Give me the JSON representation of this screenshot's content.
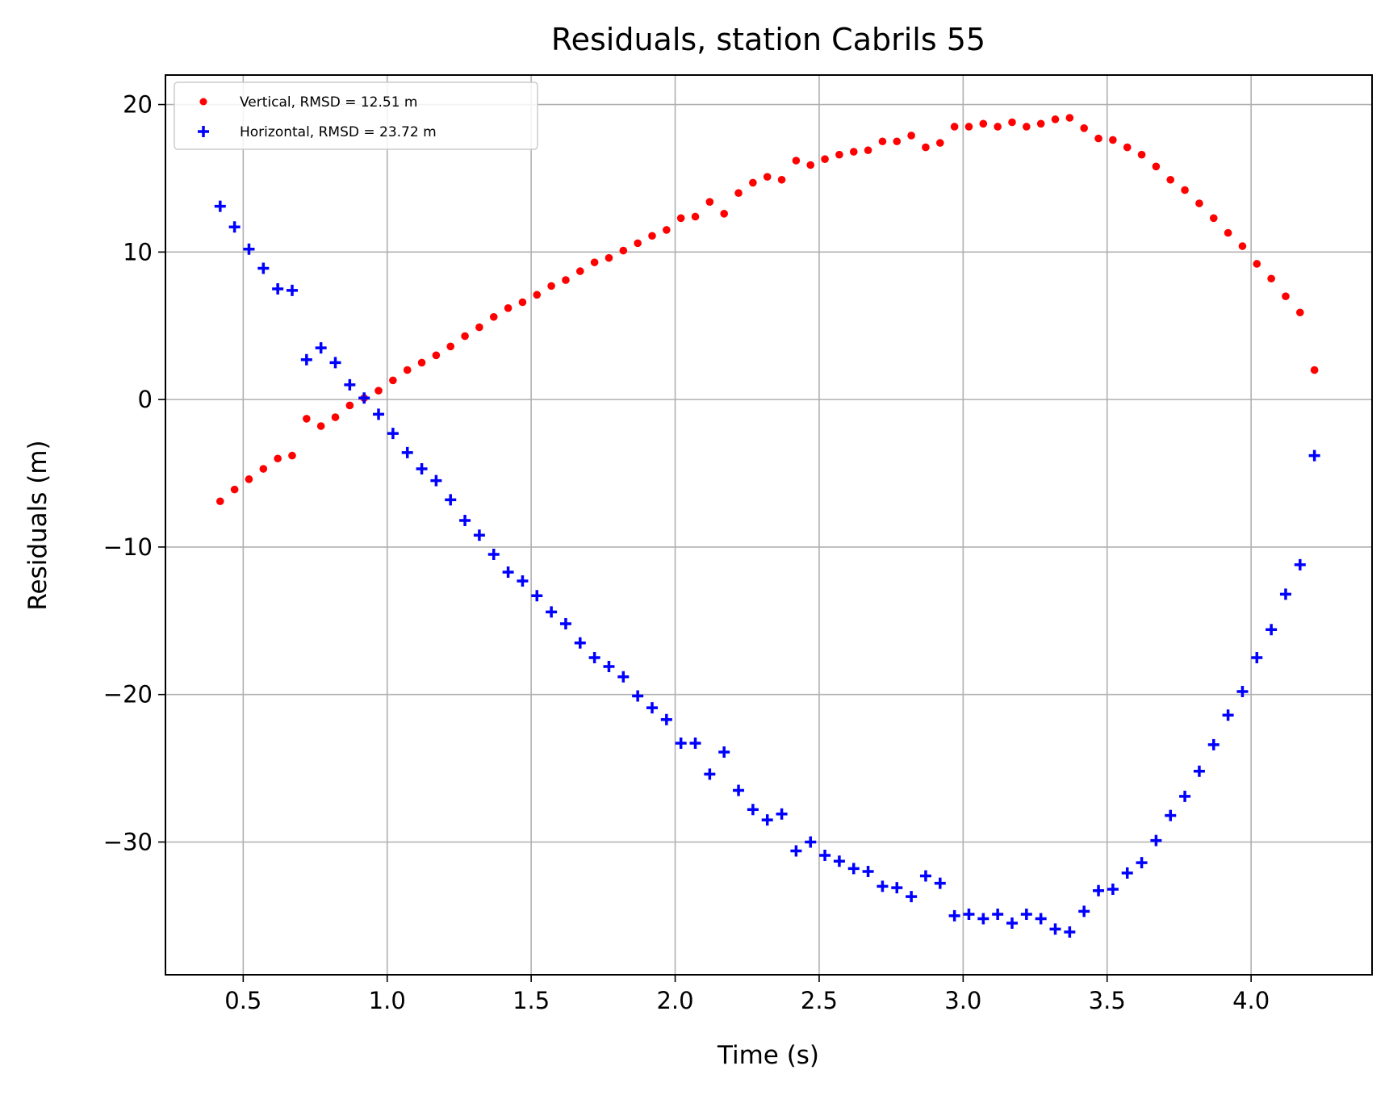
{
  "chart_data": {
    "type": "scatter",
    "title": "Residuals, station Cabrils 55",
    "xlabel": "Time (s)",
    "ylabel": "Residuals (m)",
    "xlim": [
      0.23,
      4.42
    ],
    "ylim": [
      -39.0,
      22.0
    ],
    "grid": true,
    "legend_position": "top-left",
    "x_ticks": [
      {
        "value": 0.5,
        "label": "0.5"
      },
      {
        "value": 1.0,
        "label": "1.0"
      },
      {
        "value": 1.5,
        "label": "1.5"
      },
      {
        "value": 2.0,
        "label": "2.0"
      },
      {
        "value": 2.5,
        "label": "2.5"
      },
      {
        "value": 3.0,
        "label": "3.0"
      },
      {
        "value": 3.5,
        "label": "3.5"
      },
      {
        "value": 4.0,
        "label": "4.0"
      }
    ],
    "y_ticks": [
      {
        "value": 20,
        "label": "20"
      },
      {
        "value": 10,
        "label": "10"
      },
      {
        "value": 0,
        "label": "0"
      },
      {
        "value": -10,
        "label": "−10"
      },
      {
        "value": -20,
        "label": "−20"
      },
      {
        "value": -30,
        "label": "−30"
      }
    ],
    "series": [
      {
        "name": "Vertical, RMSD = 12.51 m",
        "marker": "dot",
        "color": "#ff0000",
        "x": [
          0.42,
          0.47,
          0.52,
          0.57,
          0.62,
          0.67,
          0.72,
          0.77,
          0.82,
          0.87,
          0.92,
          0.97,
          1.02,
          1.07,
          1.12,
          1.17,
          1.22,
          1.27,
          1.32,
          1.37,
          1.42,
          1.47,
          1.52,
          1.57,
          1.62,
          1.67,
          1.72,
          1.77,
          1.82,
          1.87,
          1.92,
          1.97,
          2.02,
          2.07,
          2.12,
          2.17,
          2.22,
          2.27,
          2.32,
          2.37,
          2.42,
          2.47,
          2.52,
          2.57,
          2.62,
          2.67,
          2.72,
          2.77,
          2.82,
          2.87,
          2.92,
          2.97,
          3.02,
          3.07,
          3.12,
          3.17,
          3.22,
          3.27,
          3.32,
          3.37,
          3.42,
          3.47,
          3.52,
          3.57,
          3.62,
          3.67,
          3.72,
          3.77,
          3.82,
          3.87,
          3.92,
          3.97,
          4.02,
          4.07,
          4.12,
          4.17,
          4.22
        ],
        "y": [
          -6.9,
          -6.1,
          -5.4,
          -4.7,
          -4.0,
          -3.8,
          -1.3,
          -1.8,
          -1.2,
          -0.4,
          0.1,
          0.6,
          1.3,
          2.0,
          2.5,
          3.0,
          3.6,
          4.3,
          4.9,
          5.6,
          6.2,
          6.6,
          7.1,
          7.7,
          8.1,
          8.7,
          9.3,
          9.6,
          10.1,
          10.6,
          11.1,
          11.5,
          12.3,
          12.4,
          13.4,
          12.6,
          14.0,
          14.7,
          15.1,
          14.9,
          16.2,
          15.9,
          16.3,
          16.6,
          16.8,
          16.9,
          17.5,
          17.5,
          17.9,
          17.1,
          17.4,
          18.5,
          18.5,
          18.7,
          18.5,
          18.8,
          18.5,
          18.7,
          19.0,
          19.1,
          18.4,
          17.7,
          17.6,
          17.1,
          16.6,
          15.8,
          14.9,
          14.2,
          13.3,
          12.3,
          11.3,
          10.4,
          9.2,
          8.2,
          7.0,
          5.9,
          2.0
        ]
      },
      {
        "name": "Horizontal, RMSD = 23.72 m",
        "marker": "plus",
        "color": "#0000ff",
        "x": [
          0.42,
          0.47,
          0.52,
          0.57,
          0.62,
          0.67,
          0.72,
          0.77,
          0.82,
          0.87,
          0.92,
          0.97,
          1.02,
          1.07,
          1.12,
          1.17,
          1.22,
          1.27,
          1.32,
          1.37,
          1.42,
          1.47,
          1.52,
          1.57,
          1.62,
          1.67,
          1.72,
          1.77,
          1.82,
          1.87,
          1.92,
          1.97,
          2.02,
          2.07,
          2.12,
          2.17,
          2.22,
          2.27,
          2.32,
          2.37,
          2.42,
          2.47,
          2.52,
          2.57,
          2.62,
          2.67,
          2.72,
          2.77,
          2.82,
          2.87,
          2.92,
          2.97,
          3.02,
          3.07,
          3.12,
          3.17,
          3.22,
          3.27,
          3.32,
          3.37,
          3.42,
          3.47,
          3.52,
          3.57,
          3.62,
          3.67,
          3.72,
          3.77,
          3.82,
          3.87,
          3.92,
          3.97,
          4.02,
          4.07,
          4.12,
          4.17,
          4.22
        ],
        "y": [
          13.1,
          11.7,
          10.2,
          8.9,
          7.5,
          7.4,
          2.7,
          3.5,
          2.5,
          1.0,
          0.1,
          -1.0,
          -2.3,
          -3.6,
          -4.7,
          -5.5,
          -6.8,
          -8.2,
          -9.2,
          -10.5,
          -11.7,
          -12.3,
          -13.3,
          -14.4,
          -15.2,
          -16.5,
          -17.5,
          -18.1,
          -18.8,
          -20.1,
          -20.9,
          -21.7,
          -23.3,
          -23.3,
          -25.4,
          -23.9,
          -26.5,
          -27.8,
          -28.5,
          -28.1,
          -30.6,
          -30.0,
          -30.9,
          -31.3,
          -31.8,
          -32.0,
          -33.0,
          -33.1,
          -33.7,
          -32.3,
          -32.8,
          -35.0,
          -34.9,
          -35.2,
          -34.9,
          -35.5,
          -34.9,
          -35.2,
          -35.9,
          -36.1,
          -34.7,
          -33.3,
          -33.2,
          -32.1,
          -31.4,
          -29.9,
          -28.2,
          -26.9,
          -25.2,
          -23.4,
          -21.4,
          -19.8,
          -17.5,
          -15.6,
          -13.2,
          -11.2,
          -3.8
        ]
      }
    ]
  }
}
